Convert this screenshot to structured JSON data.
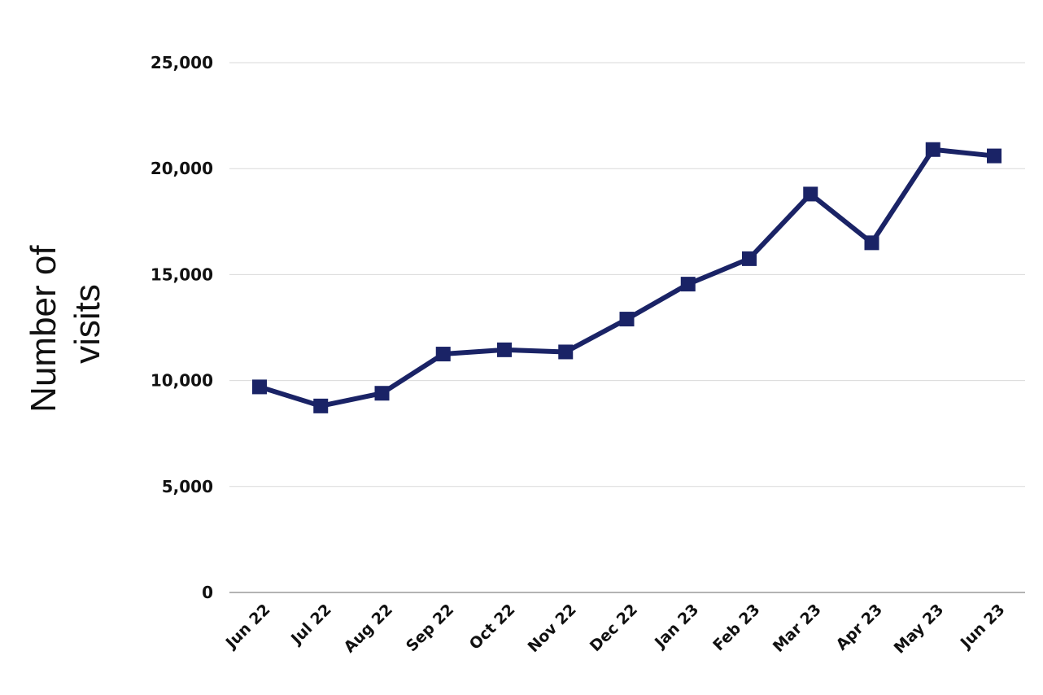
{
  "chart_data": {
    "type": "line",
    "title": "",
    "xlabel": "",
    "ylabel_lines": [
      "Number of",
      "visits"
    ],
    "categories": [
      "Jun 22",
      "Jul 22",
      "Aug 22",
      "Sep 22",
      "Oct 22",
      "Nov 22",
      "Dec 22",
      "Jan 23",
      "Feb 23",
      "Mar 23",
      "Apr 23",
      "May 23",
      "Jun 23"
    ],
    "series": [
      {
        "values": [
          9700,
          8800,
          9400,
          11250,
          11450,
          11350,
          12900,
          14550,
          15750,
          18800,
          16500,
          20900,
          20600
        ],
        "color": "#1a2366",
        "marker": "square"
      }
    ],
    "ylim": [
      0,
      25000
    ],
    "yticks": [
      0,
      5000,
      10000,
      15000,
      20000,
      25000
    ],
    "ytick_labels": [
      "0",
      "5,000",
      "10,000",
      "15,000",
      "20,000",
      "25,000"
    ],
    "grid": true,
    "legend": "none"
  }
}
